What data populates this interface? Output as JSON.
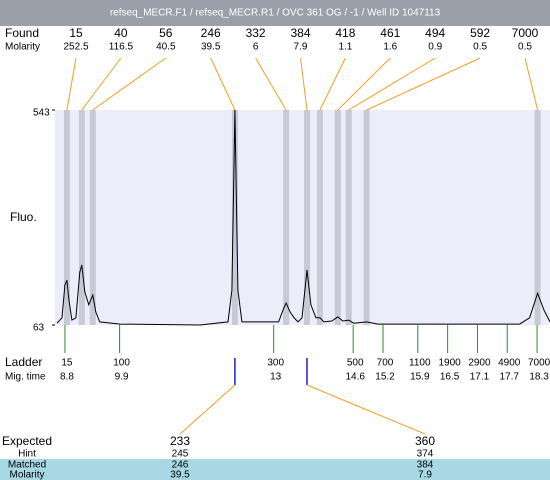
{
  "chart_data": {
    "type": "electropherogram",
    "title": "refseq_MECR.F1 / refseq_MECR.R1 / OVC 361 OG / -1 / Well ID 1047113",
    "found": {
      "label": "Found",
      "sizes": [
        15,
        40,
        56,
        246,
        332,
        384,
        418,
        461,
        494,
        592,
        7000
      ],
      "molarity_label": "Molarity",
      "molarities": [
        252.5,
        116.5,
        40.5,
        39.5,
        6,
        7.9,
        1.1,
        1.6,
        0.9,
        0.5,
        0.5
      ],
      "times": [
        8.84,
        9.14,
        9.36,
        12.22,
        13.25,
        13.67,
        13.93,
        14.29,
        14.51,
        14.87,
        18.31
      ]
    },
    "y_label": "Fluo.",
    "ylim": [
      63,
      543
    ],
    "yticks": [
      63,
      543
    ],
    "xlim": [
      8.6,
      18.56
    ],
    "trace": {
      "x": [
        8.64,
        8.74,
        8.8,
        8.84,
        8.88,
        8.94,
        9.02,
        9.1,
        9.14,
        9.2,
        9.28,
        9.36,
        9.42,
        9.5,
        9.91,
        11.52,
        12.08,
        12.16,
        12.22,
        12.28,
        12.36,
        13.1,
        13.19,
        13.25,
        13.33,
        13.41,
        13.49,
        13.57,
        13.67,
        13.75,
        13.85,
        13.93,
        14.01,
        14.17,
        14.29,
        14.39,
        14.51,
        14.61,
        14.87,
        15.1,
        17.95,
        18.15,
        18.31,
        18.44,
        18.56
      ],
      "y": [
        67,
        79,
        152,
        163,
        119,
        74,
        79,
        181,
        197,
        137,
        108,
        130,
        92,
        70,
        65,
        63,
        70,
        141,
        543,
        141,
        70,
        70,
        97,
        112,
        92,
        79,
        70,
        79,
        186,
        108,
        79,
        79,
        70,
        72,
        81,
        72,
        74,
        67,
        70,
        65,
        65,
        79,
        134,
        96,
        70
      ]
    },
    "ladder": {
      "label": "Ladder",
      "time_label": "Mig. time",
      "sizes": [
        15,
        100,
        300,
        500,
        700,
        1100,
        1900,
        2900,
        4900,
        7000
      ],
      "times": [
        8.8,
        9.9,
        13,
        14.6,
        15.2,
        15.9,
        16.5,
        17.1,
        17.7,
        18.3
      ]
    },
    "expected": {
      "label": "Expected",
      "hint_label": "Hint",
      "matched_label": "Matched",
      "molarity_label": "Molarity",
      "expected": [
        233,
        360
      ],
      "hint": [
        245,
        374
      ],
      "matched": [
        246,
        384
      ],
      "molarities": [
        39.5,
        7.9
      ],
      "times": [
        12.22,
        13.67
      ]
    }
  }
}
